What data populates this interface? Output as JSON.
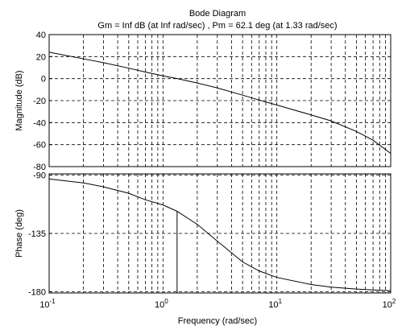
{
  "chart_data": {
    "type": "line",
    "title": "Bode Diagram",
    "subtitle": "Gm = Inf dB (at Inf rad/sec) ,  Pm = 62.1 deg (at 1.33 rad/sec)",
    "xlabel": "Frequency  (rad/sec)",
    "xscale": "log",
    "xlim": [
      0.1,
      100
    ],
    "x_tick_labels": [
      {
        "base": "10",
        "exp": "-1"
      },
      {
        "base": "10",
        "exp": "0"
      },
      {
        "base": "10",
        "exp": "1"
      },
      {
        "base": "10",
        "exp": "2"
      }
    ],
    "grid": true,
    "panels": [
      {
        "id": "magnitude",
        "ylabel": "Magnitude (dB)",
        "ylim": [
          -80,
          40
        ],
        "yticks": [
          40,
          20,
          0,
          -20,
          -40,
          -60,
          -80
        ],
        "series": [
          {
            "x": [
              0.1,
              0.2,
              0.3,
              0.5,
              0.7,
              1.0,
              1.33,
              2,
              3,
              5,
              7,
              10,
              20,
              30,
              50,
              70,
              100
            ],
            "y": [
              24,
              18,
              14.5,
              9.5,
              6,
              2.5,
              0,
              -4,
              -8.5,
              -15,
              -19.5,
              -24,
              -33,
              -38.5,
              -48,
              -56,
              -68
            ]
          }
        ]
      },
      {
        "id": "phase",
        "ylabel": "Phase (deg)",
        "ylim": [
          -181,
          -89
        ],
        "yticks": [
          -90,
          -135,
          -180
        ],
        "series": [
          {
            "x": [
              0.1,
              0.2,
              0.3,
              0.5,
              0.7,
              1.0,
              1.33,
              2,
              3,
              5,
              7,
              10,
              20,
              30,
              50,
              70,
              100
            ],
            "y": [
              -93,
              -96,
              -99,
              -104,
              -109,
              -113,
              -117.9,
              -128,
              -141,
              -157,
              -164,
              -169,
              -174.5,
              -176.5,
              -178,
              -178.7,
              -179.2
            ]
          }
        ],
        "marker": {
          "x": 1.33,
          "from": -117.9,
          "to": -181
        }
      }
    ]
  }
}
